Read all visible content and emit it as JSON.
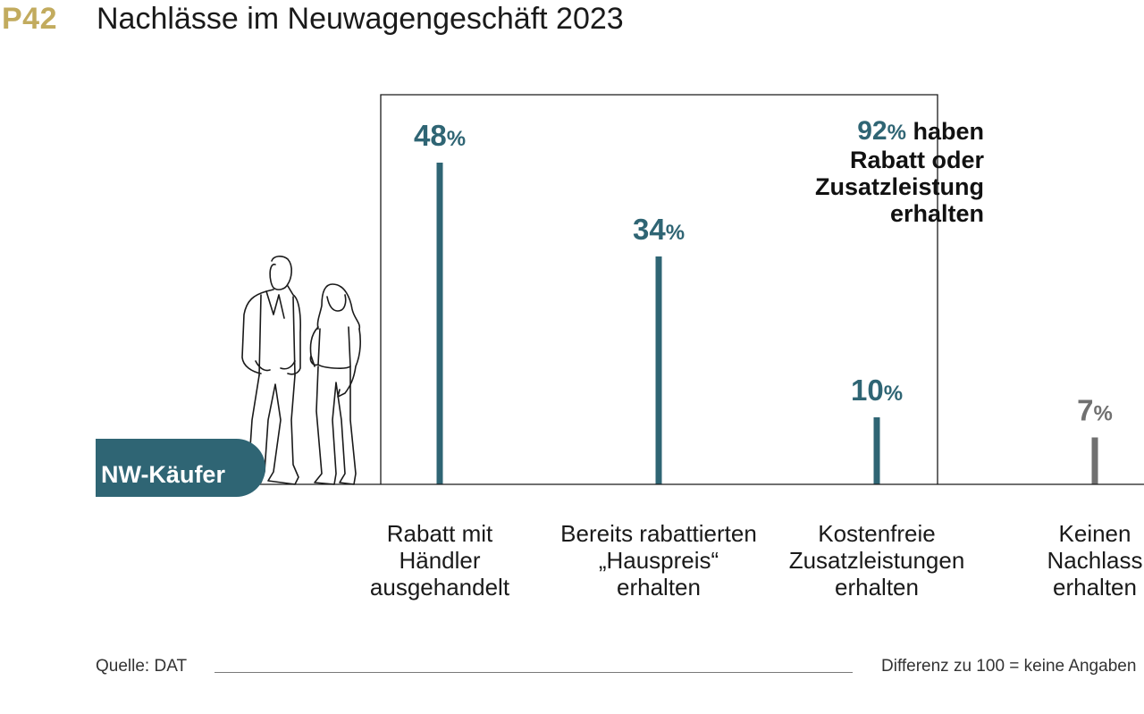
{
  "header": {
    "code": "P42",
    "title": "Nachlässe im Neuwagengeschäft 2023"
  },
  "colors": {
    "accent_gold": "#c2ab5e",
    "teal": "#2f6574",
    "gray": "#707070",
    "line": "#1a1a1a"
  },
  "badge": {
    "label": "NW-Käufer",
    "icon": "couple-illustration-icon"
  },
  "bracket_note": {
    "value": "92",
    "unit": "%",
    "lines": [
      "haben",
      "Rabatt oder",
      "Zusatzleistung",
      "erhalten"
    ]
  },
  "chart_data": {
    "type": "bar",
    "title": "Nachlässe im Neuwagengeschäft 2023",
    "categories": [
      [
        "Rabatt mit",
        "Händler",
        "ausgehandelt"
      ],
      [
        "Bereits rabattierten",
        "„Hauspreis“",
        "erhalten"
      ],
      [
        "Kostenfreie",
        "Zusatzleistungen",
        "erhalten"
      ],
      [
        "Keinen",
        "Nachlass",
        "erhalten"
      ]
    ],
    "values": [
      48,
      34,
      10,
      7
    ],
    "value_labels": [
      "48",
      "34",
      "10",
      "7"
    ],
    "unit": "%",
    "bar_colors": [
      "#2f6574",
      "#2f6574",
      "#2f6574",
      "#707070"
    ],
    "ylim": [
      0,
      50
    ],
    "grid": false,
    "legend": "none"
  },
  "footer": {
    "source": "Quelle: DAT",
    "note": "Differenz zu 100 = keine Angaben"
  }
}
